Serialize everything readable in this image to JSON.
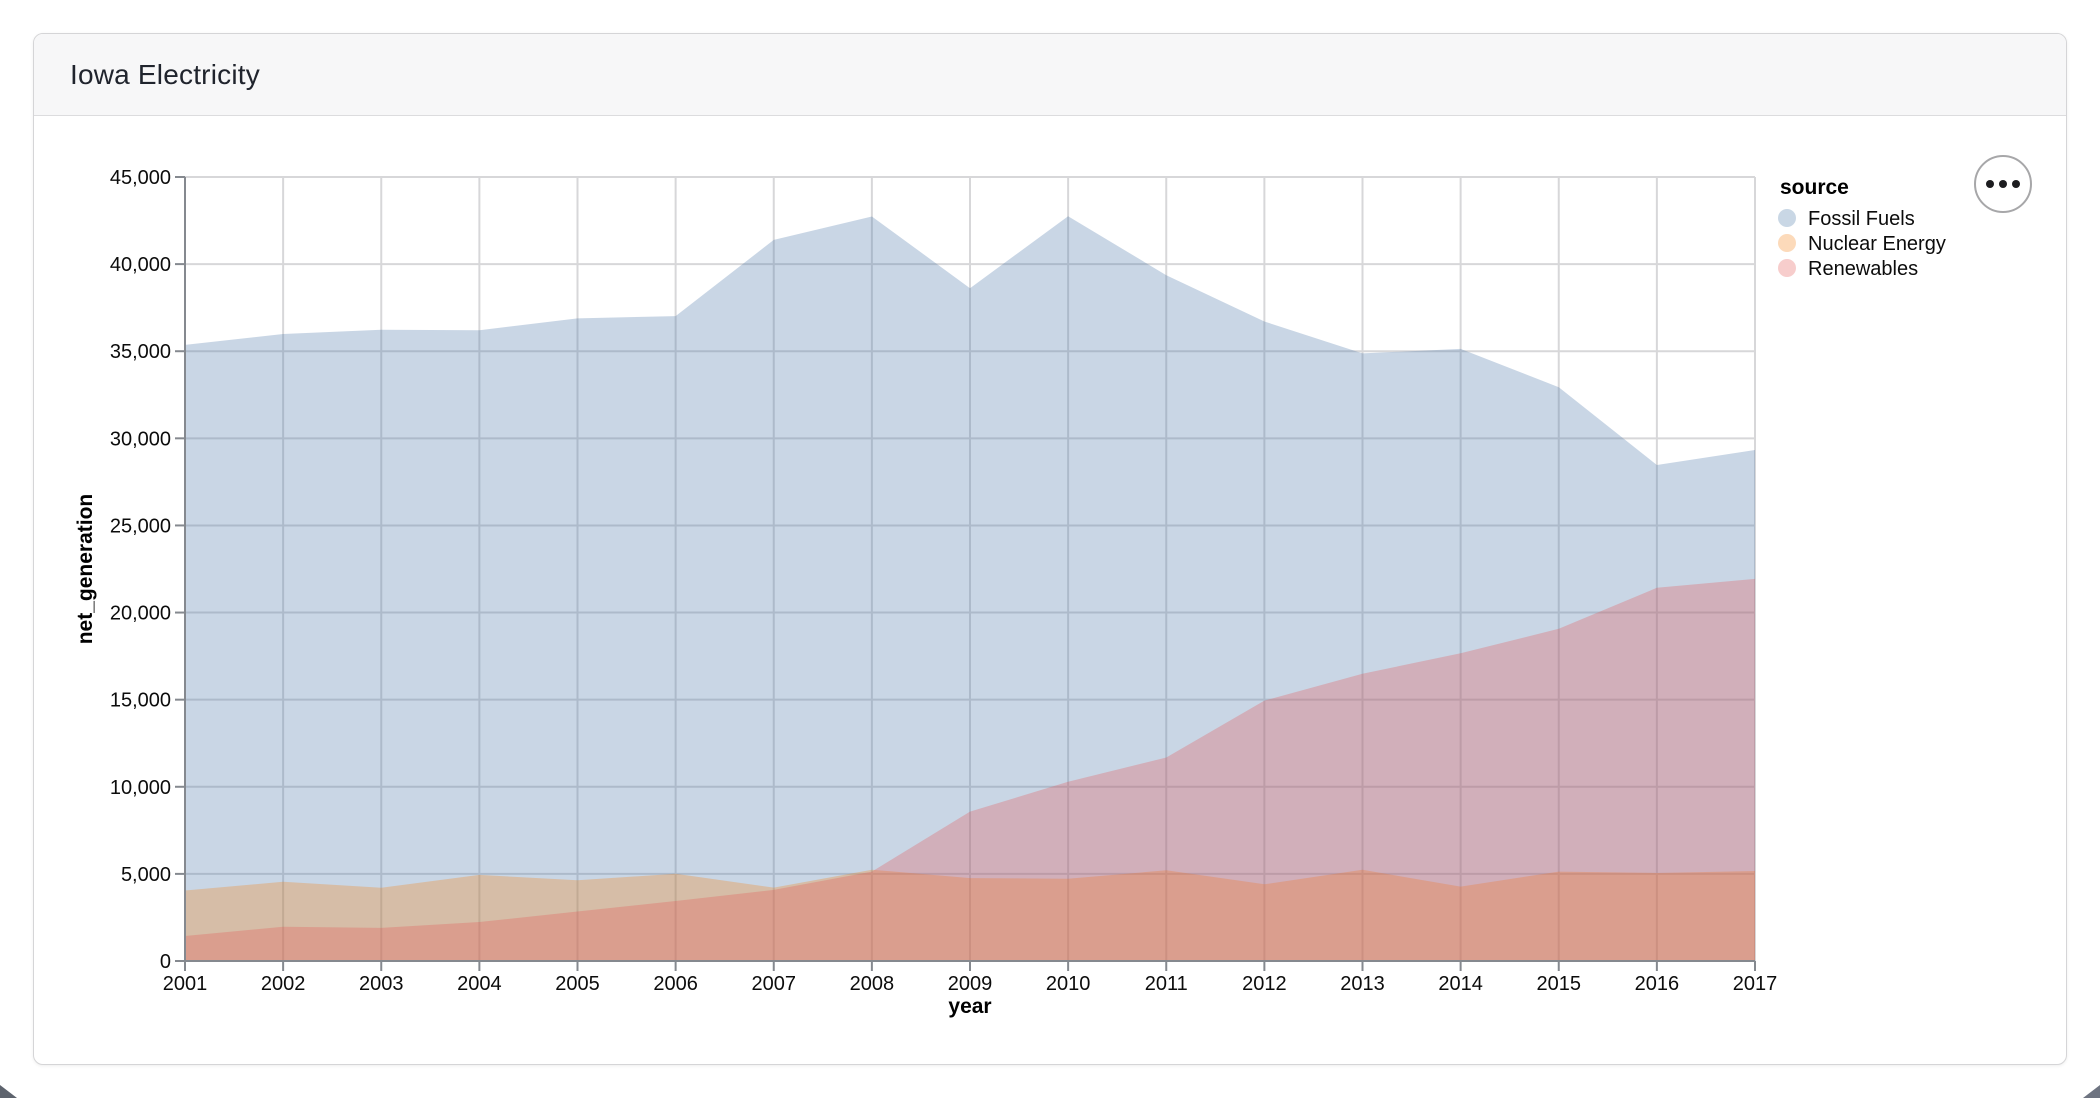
{
  "header": {
    "title": "Iowa Electricity"
  },
  "actions_button": {
    "icon": "ellipsis"
  },
  "colors": {
    "card_border": "#d5d5d7",
    "header_background": "#f7f7f8",
    "grid": "#d7d7d9",
    "axis_domain": "#85898f",
    "label_text": "#0c0c0c",
    "legend_swatch_fossil": "#c9d6e5",
    "legend_swatch_nuclear": "#fbdaba",
    "legend_swatch_renewables": "#f6cdcc"
  },
  "chart_data": {
    "type": "area",
    "variant": "overlapping-areas",
    "fill_opacity": 0.3,
    "title": "Iowa Electricity",
    "xlabel": "year",
    "ylabel": "net_generation",
    "legend_title": "source",
    "legend_position": "top-right",
    "grid": true,
    "ylim": [
      0,
      45000
    ],
    "ytick_step": 5000,
    "x": [
      2001,
      2002,
      2003,
      2004,
      2005,
      2006,
      2007,
      2008,
      2009,
      2010,
      2011,
      2012,
      2013,
      2014,
      2015,
      2016,
      2017
    ],
    "series": [
      {
        "name": "Fossil Fuels",
        "color": "#4c78a8",
        "values": [
          35361,
          35991,
          36234,
          36205,
          36883,
          37014,
          41389,
          42734,
          38620,
          42750,
          39361,
          36706,
          34873,
          35132,
          32936,
          28470,
          29329
        ]
      },
      {
        "name": "Nuclear Energy",
        "color": "#f58518",
        "values": [
          4046,
          4547,
          4210,
          4944,
          4633,
          5003,
          4215,
          5241,
          4759,
          4723,
          5206,
          4403,
          5236,
          4270,
          5129,
          5049,
          5163
        ]
      },
      {
        "name": "Renewables",
        "color": "#e45756",
        "values": [
          1437,
          1967,
          1899,
          2239,
          2844,
          3443,
          4080,
          5132,
          8576,
          10284,
          11681,
          14946,
          16488,
          17661,
          19069,
          21421,
          21933
        ]
      }
    ]
  }
}
